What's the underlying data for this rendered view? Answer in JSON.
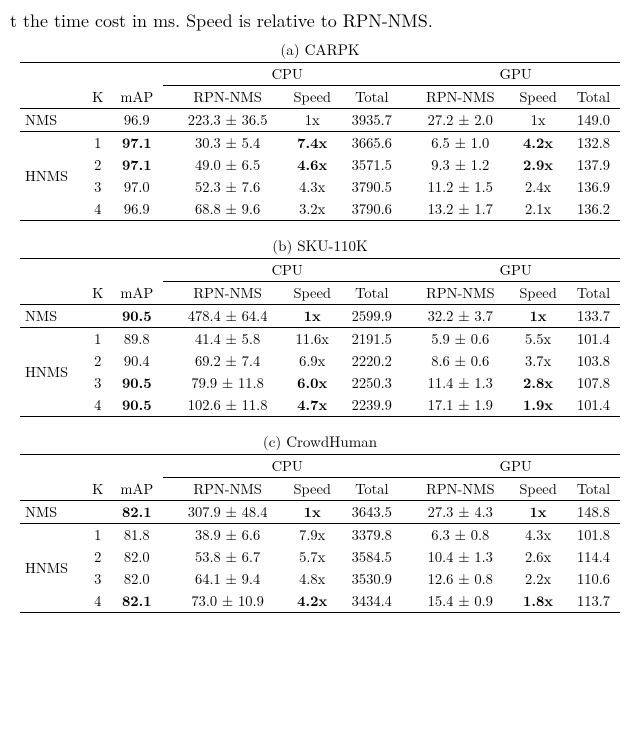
{
  "intro_text": "t the time cost in ms. Speed is relative to RPN-NMS.",
  "common": {
    "header_cpu": "CPU",
    "header_gpu": "GPU",
    "col_K": "K",
    "col_mAP": "mAP",
    "col_rpnnms": "RPN-NMS",
    "col_speed": "Speed",
    "col_total": "Total",
    "nms_label": "NMS",
    "hnms_label": "HNMS"
  },
  "tables": {
    "carpk": {
      "caption": "(a) CARPK",
      "nms": {
        "map": "96.9",
        "cpu_rpnnms": "223.3 ± 36.5",
        "cpu_speed": "1x",
        "cpu_total": "3935.7",
        "gpu_rpnnms": "27.2 ± 2.0",
        "gpu_speed": "1x",
        "gpu_total": "149.0"
      },
      "hnms": [
        {
          "k": "1",
          "map": "97.1",
          "map_bold": true,
          "cpu_rpnnms": "30.3 ± 5.4",
          "cpu_speed": "7.4x",
          "cpu_speed_bold": true,
          "cpu_total": "3665.6",
          "gpu_rpnnms": "6.5 ± 1.0",
          "gpu_speed": "4.2x",
          "gpu_speed_bold": true,
          "gpu_total": "132.8"
        },
        {
          "k": "2",
          "map": "97.1",
          "map_bold": true,
          "cpu_rpnnms": "49.0 ± 6.5",
          "cpu_speed": "4.6x",
          "cpu_speed_bold": true,
          "cpu_total": "3571.5",
          "gpu_rpnnms": "9.3 ± 1.2",
          "gpu_speed": "2.9x",
          "gpu_speed_bold": true,
          "gpu_total": "137.9"
        },
        {
          "k": "3",
          "map": "97.0",
          "cpu_rpnnms": "52.3 ± 7.6",
          "cpu_speed": "4.3x",
          "cpu_total": "3790.5",
          "gpu_rpnnms": "11.2 ± 1.5",
          "gpu_speed": "2.4x",
          "gpu_total": "136.9"
        },
        {
          "k": "4",
          "map": "96.9",
          "cpu_rpnnms": "68.8 ± 9.6",
          "cpu_speed": "3.2x",
          "cpu_total": "3790.6",
          "gpu_rpnnms": "13.2 ± 1.7",
          "gpu_speed": "2.1x",
          "gpu_total": "136.2"
        }
      ]
    },
    "sku": {
      "caption": "(b) SKU-110K",
      "nms": {
        "map": "90.5",
        "map_bold": true,
        "cpu_rpnnms": "478.4 ± 64.4",
        "cpu_speed": "1x",
        "cpu_speed_bold": true,
        "cpu_total": "2599.9",
        "gpu_rpnnms": "32.2 ± 3.7",
        "gpu_speed": "1x",
        "gpu_speed_bold": true,
        "gpu_total": "133.7"
      },
      "hnms": [
        {
          "k": "1",
          "map": "89.8",
          "cpu_rpnnms": "41.4 ± 5.8",
          "cpu_speed": "11.6x",
          "cpu_total": "2191.5",
          "gpu_rpnnms": "5.9 ± 0.6",
          "gpu_speed": "5.5x",
          "gpu_total": "101.4"
        },
        {
          "k": "2",
          "map": "90.4",
          "cpu_rpnnms": "69.2 ± 7.4",
          "cpu_speed": "6.9x",
          "cpu_total": "2220.2",
          "gpu_rpnnms": "8.6 ± 0.6",
          "gpu_speed": "3.7x",
          "gpu_total": "103.8"
        },
        {
          "k": "3",
          "map": "90.5",
          "map_bold": true,
          "cpu_rpnnms": "79.9 ± 11.8",
          "cpu_speed": "6.0x",
          "cpu_speed_bold": true,
          "cpu_total": "2250.3",
          "gpu_rpnnms": "11.4 ± 1.3",
          "gpu_speed": "2.8x",
          "gpu_speed_bold": true,
          "gpu_total": "107.8"
        },
        {
          "k": "4",
          "map": "90.5",
          "map_bold": true,
          "cpu_rpnnms": "102.6 ± 11.8",
          "cpu_speed": "4.7x",
          "cpu_speed_bold": true,
          "cpu_total": "2239.9",
          "gpu_rpnnms": "17.1 ± 1.9",
          "gpu_speed": "1.9x",
          "gpu_speed_bold": true,
          "gpu_total": "101.4"
        }
      ]
    },
    "crowd": {
      "caption": "(c) CrowdHuman",
      "nms": {
        "map": "82.1",
        "map_bold": true,
        "cpu_rpnnms": "307.9 ± 48.4",
        "cpu_speed": "1x",
        "cpu_speed_bold": true,
        "cpu_total": "3643.5",
        "gpu_rpnnms": "27.3 ± 4.3",
        "gpu_speed": "1x",
        "gpu_speed_bold": true,
        "gpu_total": "148.8"
      },
      "hnms": [
        {
          "k": "1",
          "map": "81.8",
          "cpu_rpnnms": "38.9 ± 6.6",
          "cpu_speed": "7.9x",
          "cpu_total": "3379.8",
          "gpu_rpnnms": "6.3 ± 0.8",
          "gpu_speed": "4.3x",
          "gpu_total": "101.8"
        },
        {
          "k": "2",
          "map": "82.0",
          "cpu_rpnnms": "53.8 ± 6.7",
          "cpu_speed": "5.7x",
          "cpu_total": "3584.5",
          "gpu_rpnnms": "10.4 ± 1.3",
          "gpu_speed": "2.6x",
          "gpu_total": "114.4"
        },
        {
          "k": "3",
          "map": "82.0",
          "cpu_rpnnms": "64.1 ± 9.4",
          "cpu_speed": "4.8x",
          "cpu_total": "3530.9",
          "gpu_rpnnms": "12.6 ± 0.8",
          "gpu_speed": "2.2x",
          "gpu_total": "110.6"
        },
        {
          "k": "4",
          "map": "82.1",
          "map_bold": true,
          "cpu_rpnnms": "73.0 ± 10.9",
          "cpu_speed": "4.2x",
          "cpu_speed_bold": true,
          "cpu_total": "3434.4",
          "gpu_rpnnms": "15.4 ± 0.9",
          "gpu_speed": "1.8x",
          "gpu_speed_bold": true,
          "gpu_total": "113.7"
        }
      ]
    }
  }
}
